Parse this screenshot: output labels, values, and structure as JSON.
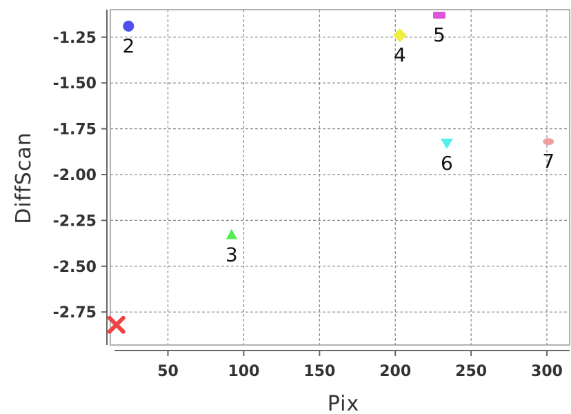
{
  "chart_data": {
    "type": "scatter",
    "xlabel": "Pix",
    "ylabel": "DiffScan",
    "xlim": [
      12,
      315
    ],
    "ylim": [
      -2.93,
      -1.1
    ],
    "xticks": [
      "50",
      "100",
      "150",
      "200",
      "250",
      "300"
    ],
    "yticks": [
      "-1.25",
      "-1.50",
      "-1.75",
      "-2.00",
      "-2.25",
      "-2.50",
      "-2.75"
    ],
    "xtick_values": [
      50,
      100,
      150,
      200,
      250,
      300
    ],
    "ytick_values": [
      -1.25,
      -1.5,
      -1.75,
      -2.0,
      -2.25,
      -2.5,
      -2.75
    ],
    "grid": true,
    "points": [
      {
        "label": "",
        "x": 16,
        "y": -2.82,
        "shape": "x-mark",
        "color": "#ee4444"
      },
      {
        "label": "2",
        "x": 24,
        "y": -1.19,
        "shape": "circle",
        "color": "#4f4fee"
      },
      {
        "label": "3",
        "x": 92,
        "y": -2.33,
        "shape": "triangle-up",
        "color": "#55ee55"
      },
      {
        "label": "4",
        "x": 203,
        "y": -1.24,
        "shape": "diamond",
        "color": "#eeee44"
      },
      {
        "label": "5",
        "x": 229,
        "y": -1.13,
        "shape": "rect",
        "color": "#dd55dd"
      },
      {
        "label": "6",
        "x": 234,
        "y": -1.83,
        "shape": "triangle-down",
        "color": "#55eeee"
      },
      {
        "label": "7",
        "x": 301,
        "y": -1.82,
        "shape": "ellipse",
        "color": "#f0a0a0"
      }
    ]
  }
}
